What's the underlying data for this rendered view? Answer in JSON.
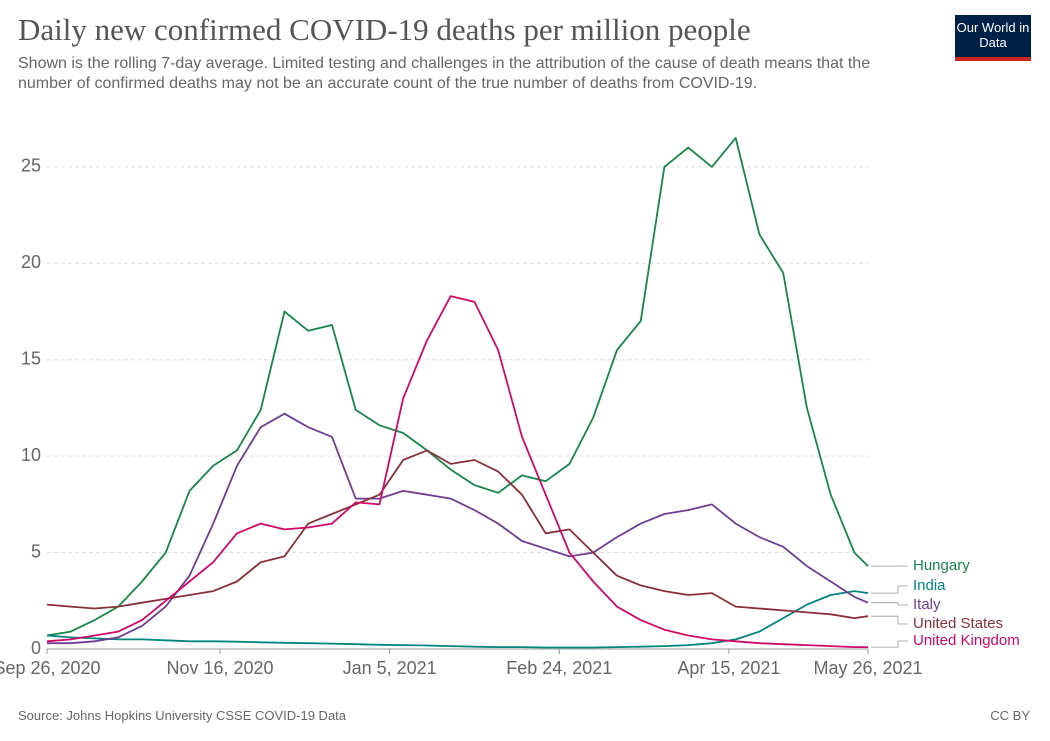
{
  "chart_data": {
    "type": "line",
    "title": "Daily new confirmed COVID-19 deaths per million people",
    "subtitle": "Shown is the rolling 7-day average. Limited testing and challenges in the attribution of the cause of death means that the number of confirmed deaths may not be an accurate count of the true number of deaths from COVID-19.",
    "logo": "Our World in Data",
    "source": "Source: Johns Hopkins University CSSE COVID-19 Data",
    "license": "CC BY",
    "x": [
      "2020-09-26",
      "2020-10-03",
      "2020-10-10",
      "2020-10-17",
      "2020-10-24",
      "2020-10-31",
      "2020-11-07",
      "2020-11-14",
      "2020-11-21",
      "2020-11-28",
      "2020-12-05",
      "2020-12-12",
      "2020-12-19",
      "2020-12-26",
      "2021-01-02",
      "2021-01-09",
      "2021-01-16",
      "2021-01-23",
      "2021-01-30",
      "2021-02-06",
      "2021-02-13",
      "2021-02-20",
      "2021-02-27",
      "2021-03-06",
      "2021-03-13",
      "2021-03-20",
      "2021-03-27",
      "2021-04-03",
      "2021-04-10",
      "2021-04-17",
      "2021-04-24",
      "2021-05-01",
      "2021-05-08",
      "2021-05-15",
      "2021-05-22",
      "2021-05-26"
    ],
    "xlim": [
      "2020-09-26",
      "2021-05-26"
    ],
    "xticks": [
      {
        "value": "2020-09-26",
        "label": "Sep 26, 2020"
      },
      {
        "value": "2020-11-16",
        "label": "Nov 16, 2020"
      },
      {
        "value": "2021-01-05",
        "label": "Jan 5, 2021"
      },
      {
        "value": "2021-02-24",
        "label": "Feb 24, 2021"
      },
      {
        "value": "2021-04-15",
        "label": "Apr 15, 2021"
      },
      {
        "value": "2021-05-26",
        "label": "May 26, 2021"
      }
    ],
    "ylim": [
      0,
      28
    ],
    "yticks": [
      0,
      5,
      10,
      15,
      20,
      25
    ],
    "grid": true,
    "series": [
      {
        "name": "Hungary",
        "color": "#18864b",
        "values": [
          0.7,
          0.9,
          1.5,
          2.2,
          3.5,
          5.0,
          8.2,
          9.5,
          10.3,
          12.4,
          17.5,
          16.5,
          16.8,
          12.4,
          11.6,
          11.2,
          10.3,
          9.3,
          8.5,
          8.1,
          9.0,
          8.7,
          9.6,
          12.0,
          15.5,
          17.0,
          25.0,
          26.0,
          25.0,
          26.5,
          21.5,
          19.5,
          12.5,
          8.0,
          5.0,
          4.3
        ]
      },
      {
        "name": "India",
        "color": "#00847e",
        "values": [
          0.7,
          0.6,
          0.55,
          0.5,
          0.5,
          0.45,
          0.4,
          0.4,
          0.38,
          0.35,
          0.32,
          0.3,
          0.28,
          0.25,
          0.22,
          0.2,
          0.18,
          0.15,
          0.12,
          0.1,
          0.1,
          0.08,
          0.08,
          0.08,
          0.1,
          0.12,
          0.15,
          0.2,
          0.3,
          0.5,
          0.9,
          1.6,
          2.3,
          2.8,
          3.0,
          2.9
        ]
      },
      {
        "name": "Italy",
        "color": "#6d3e91",
        "values": [
          0.3,
          0.3,
          0.4,
          0.6,
          1.2,
          2.2,
          3.8,
          6.5,
          9.5,
          11.5,
          12.2,
          11.5,
          11.0,
          7.8,
          7.8,
          8.2,
          8.0,
          7.8,
          7.2,
          6.5,
          5.6,
          5.2,
          4.8,
          5.0,
          5.8,
          6.5,
          7.0,
          7.2,
          7.5,
          6.5,
          5.8,
          5.3,
          4.3,
          3.5,
          2.7,
          2.4
        ]
      },
      {
        "name": "United States",
        "color": "#883039",
        "values": [
          2.3,
          2.2,
          2.1,
          2.2,
          2.4,
          2.6,
          2.8,
          3.0,
          3.5,
          4.5,
          4.8,
          6.5,
          7.0,
          7.5,
          8.0,
          9.8,
          10.3,
          9.6,
          9.8,
          9.2,
          8.0,
          6.0,
          6.2,
          5.0,
          3.8,
          3.3,
          3.0,
          2.8,
          2.9,
          2.2,
          2.1,
          2.0,
          1.9,
          1.8,
          1.6,
          1.7
        ]
      },
      {
        "name": "United Kingdom",
        "color": "#cf0a66",
        "values": [
          0.4,
          0.5,
          0.7,
          0.9,
          1.5,
          2.5,
          3.5,
          4.5,
          6.0,
          6.5,
          6.2,
          6.3,
          6.5,
          7.6,
          7.5,
          13.0,
          16.0,
          18.3,
          18.0,
          15.5,
          11.0,
          8.0,
          5.0,
          3.5,
          2.2,
          1.5,
          1.0,
          0.7,
          0.5,
          0.4,
          0.3,
          0.25,
          0.2,
          0.15,
          0.1,
          0.1
        ]
      }
    ]
  }
}
